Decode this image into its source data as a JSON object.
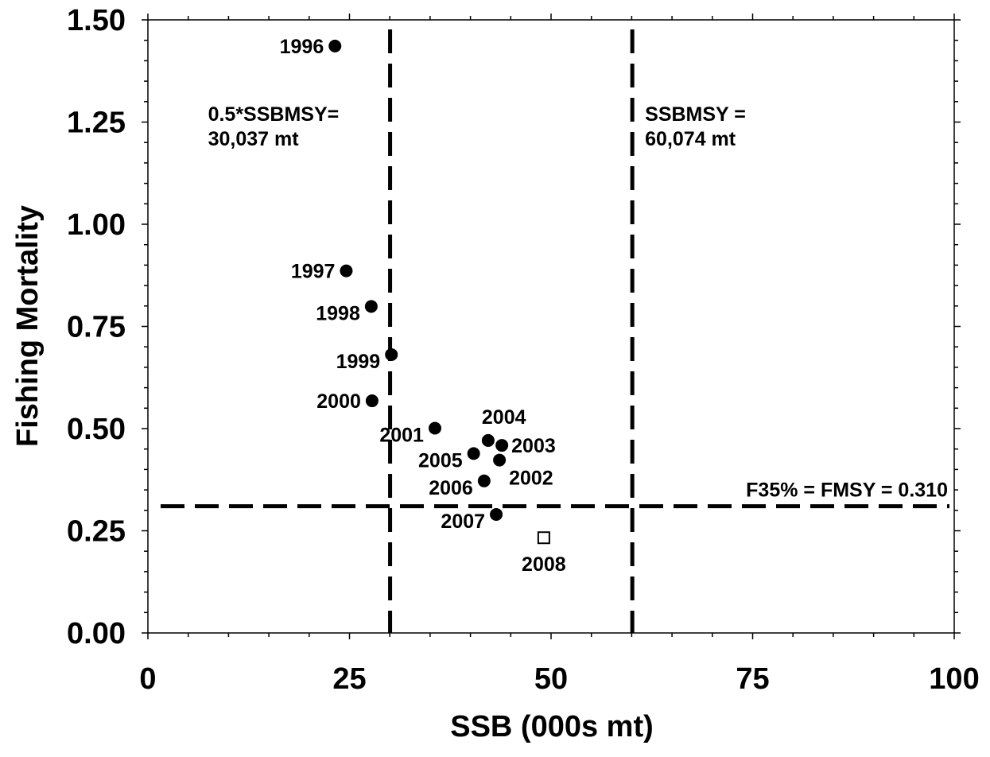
{
  "chart_data": {
    "type": "scatter",
    "xlabel": "SSB (000s mt)",
    "ylabel": "Fishing Mortality",
    "xlim": [
      0,
      100
    ],
    "ylim": [
      0,
      1.5
    ],
    "x_ticks": [
      0,
      25,
      50,
      75,
      100
    ],
    "x_tick_labels": [
      "0",
      "25",
      "50",
      "75",
      "100"
    ],
    "y_ticks": [
      0,
      0.25,
      0.5,
      0.75,
      1.0,
      1.25,
      1.5
    ],
    "y_tick_labels": [
      "0.00",
      "0.25",
      "0.50",
      "0.75",
      "1.00",
      "1.25",
      "1.50"
    ],
    "grid": false,
    "points": [
      {
        "year": "1996",
        "x": 23.2,
        "y": 1.436,
        "marker": "filled-circle",
        "label_side": "left"
      },
      {
        "year": "1997",
        "x": 24.6,
        "y": 0.886,
        "marker": "filled-circle",
        "label_side": "left"
      },
      {
        "year": "1998",
        "x": 27.7,
        "y": 0.799,
        "marker": "filled-circle",
        "label_side": "left-below"
      },
      {
        "year": "1999",
        "x": 30.2,
        "y": 0.681,
        "marker": "filled-circle",
        "label_side": "left-below"
      },
      {
        "year": "2000",
        "x": 27.8,
        "y": 0.568,
        "marker": "filled-circle",
        "label_side": "left"
      },
      {
        "year": "2001",
        "x": 35.6,
        "y": 0.501,
        "marker": "filled-circle",
        "label_side": "left-below"
      },
      {
        "year": "2002",
        "x": 43.6,
        "y": 0.423,
        "marker": "filled-circle",
        "label_side": "right-below"
      },
      {
        "year": "2003",
        "x": 43.9,
        "y": 0.459,
        "marker": "filled-circle",
        "label_side": "right"
      },
      {
        "year": "2004",
        "x": 42.2,
        "y": 0.471,
        "marker": "filled-circle",
        "label_side": "above-right"
      },
      {
        "year": "2005",
        "x": 40.4,
        "y": 0.439,
        "marker": "filled-circle",
        "label_side": "left-below"
      },
      {
        "year": "2006",
        "x": 41.7,
        "y": 0.372,
        "marker": "filled-circle",
        "label_side": "left-below"
      },
      {
        "year": "2007",
        "x": 43.2,
        "y": 0.29,
        "marker": "filled-circle",
        "label_side": "left-below"
      },
      {
        "year": "2008",
        "x": 49.1,
        "y": 0.233,
        "marker": "open-square",
        "label_side": "below"
      }
    ],
    "reference_lines": [
      {
        "orientation": "vertical",
        "value": 30.037,
        "style": "dashed",
        "label_lines": [
          "0.5*SSBMSY=",
          "30,037 mt"
        ]
      },
      {
        "orientation": "vertical",
        "value": 60.074,
        "style": "dashed",
        "label_lines": [
          "SSBMSY =",
          "60,074 mt"
        ]
      },
      {
        "orientation": "horizontal",
        "value": 0.31,
        "style": "dashed",
        "label_lines": [
          "F35% = FMSY = 0.310"
        ]
      }
    ]
  }
}
